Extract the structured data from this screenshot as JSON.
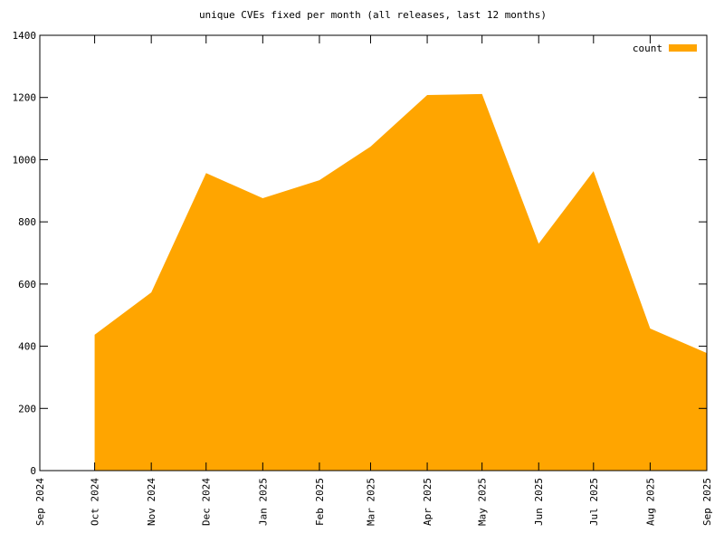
{
  "chart_data": {
    "type": "area",
    "title": "unique CVEs fixed per month (all releases, last 12 months)",
    "x": [
      "2024-10",
      "2024-11",
      "2024-12",
      "2025-01",
      "2025-02",
      "2025-03",
      "2025-04",
      "2025-05",
      "2025-06",
      "2025-07",
      "2025-08",
      "2025-09"
    ],
    "series": [
      {
        "name": "count",
        "color": "#ffa500",
        "values": [
          437,
          573,
          957,
          876,
          934,
          1042,
          1208,
          1211,
          730,
          963,
          457,
          378
        ]
      }
    ],
    "xlim": [
      "2024-09",
      "2025-09"
    ],
    "xticks": [
      {
        "value": "2024-09",
        "label": "Sep 2024"
      },
      {
        "value": "2024-10",
        "label": "Oct 2024"
      },
      {
        "value": "2024-11",
        "label": "Nov 2024"
      },
      {
        "value": "2024-12",
        "label": "Dec 2024"
      },
      {
        "value": "2025-01",
        "label": "Jan 2025"
      },
      {
        "value": "2025-02",
        "label": "Feb 2025"
      },
      {
        "value": "2025-03",
        "label": "Mar 2025"
      },
      {
        "value": "2025-04",
        "label": "Apr 2025"
      },
      {
        "value": "2025-05",
        "label": "May 2025"
      },
      {
        "value": "2025-06",
        "label": "Jun 2025"
      },
      {
        "value": "2025-07",
        "label": "Jul 2025"
      },
      {
        "value": "2025-08",
        "label": "Aug 2025"
      },
      {
        "value": "2025-09",
        "label": "Sep 2025"
      }
    ],
    "ylim": [
      0,
      1400
    ],
    "yticks": [
      0,
      200,
      400,
      600,
      800,
      1000,
      1200,
      1400
    ],
    "legend": "top-right"
  }
}
